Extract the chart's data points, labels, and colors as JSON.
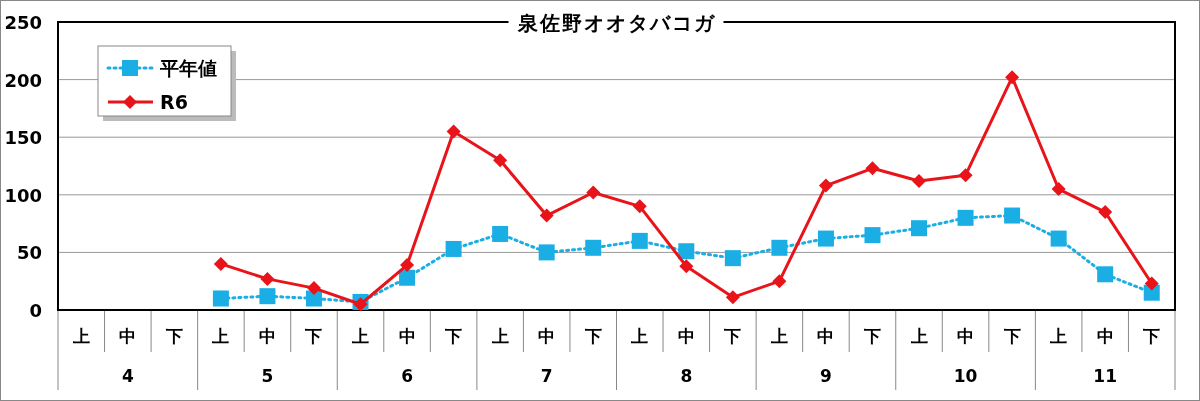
{
  "chart_data": {
    "type": "line",
    "title": "泉佐野オオタバコガ",
    "categories": [
      "上",
      "中",
      "下",
      "上",
      "中",
      "下",
      "上",
      "中",
      "下",
      "上",
      "中",
      "下",
      "上",
      "中",
      "下",
      "上",
      "中",
      "下",
      "上",
      "中",
      "下",
      "上",
      "中",
      "下"
    ],
    "annotations": [
      "4",
      "5",
      "6",
      "7",
      "8",
      "9",
      "10",
      "11"
    ],
    "series": [
      {
        "name": "平年値",
        "color": "#1aaee5",
        "marker": "square",
        "line_style": "dotted",
        "values": [
          null,
          null,
          null,
          10,
          12,
          10,
          7,
          28,
          53,
          66,
          50,
          54,
          60,
          51,
          45,
          54,
          62,
          65,
          71,
          80,
          82,
          62,
          31,
          15
        ]
      },
      {
        "name": "R6",
        "color": "#e8141a",
        "marker": "diamond",
        "line_style": "solid",
        "values": [
          null,
          null,
          null,
          40,
          27,
          19,
          5,
          39,
          155,
          130,
          82,
          102,
          90,
          38,
          11,
          25,
          108,
          123,
          112,
          117,
          202,
          105,
          85,
          23
        ]
      }
    ],
    "ylim": [
      0,
      250
    ],
    "yticks": [
      0,
      50,
      100,
      150,
      200,
      250
    ],
    "grid": "y",
    "legend": "top left"
  }
}
